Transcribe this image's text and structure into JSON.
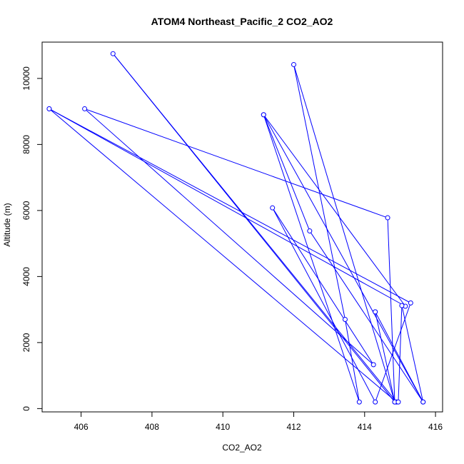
{
  "chart_data": {
    "type": "line",
    "title": "ATOM4 Northeast_Pacific_2 CO2_AO2",
    "xlabel": "CO2_AO2",
    "ylabel": "Altitude (m)",
    "xlim": [
      404.9,
      416.2
    ],
    "ylim": [
      -100,
      11100
    ],
    "x_ticks": [
      406,
      408,
      410,
      412,
      414,
      416
    ],
    "y_ticks": [
      0,
      2000,
      4000,
      6000,
      8000,
      10000
    ],
    "grid": false,
    "legend": "none",
    "marker": "open-circle",
    "series": [
      {
        "color": "#0000ff",
        "points": [
          {
            "x": 405.1,
            "y": 9080
          },
          {
            "x": 414.9,
            "y": 200
          },
          {
            "x": 406.9,
            "y": 10750
          },
          {
            "x": 414.85,
            "y": 200
          },
          {
            "x": 412.0,
            "y": 10420
          },
          {
            "x": 413.45,
            "y": 2700
          },
          {
            "x": 413.85,
            "y": 200
          },
          {
            "x": 411.15,
            "y": 8900
          },
          {
            "x": 415.15,
            "y": 3100
          },
          {
            "x": 405.1,
            "y": 9080
          },
          {
            "x": 415.3,
            "y": 3200
          },
          {
            "x": 414.3,
            "y": 200
          },
          {
            "x": 411.4,
            "y": 6080
          },
          {
            "x": 414.25,
            "y": 1330
          },
          {
            "x": 406.1,
            "y": 9080
          },
          {
            "x": 414.65,
            "y": 5780
          },
          {
            "x": 414.85,
            "y": 200
          },
          {
            "x": 414.3,
            "y": 2930
          },
          {
            "x": 414.3,
            "y": 2930
          },
          {
            "x": 415.65,
            "y": 200
          },
          {
            "x": 411.15,
            "y": 8900
          },
          {
            "x": 412.45,
            "y": 5380
          },
          {
            "x": 415.65,
            "y": 200
          },
          {
            "x": 415.05,
            "y": 3120
          },
          {
            "x": 414.95,
            "y": 200
          }
        ]
      }
    ]
  }
}
